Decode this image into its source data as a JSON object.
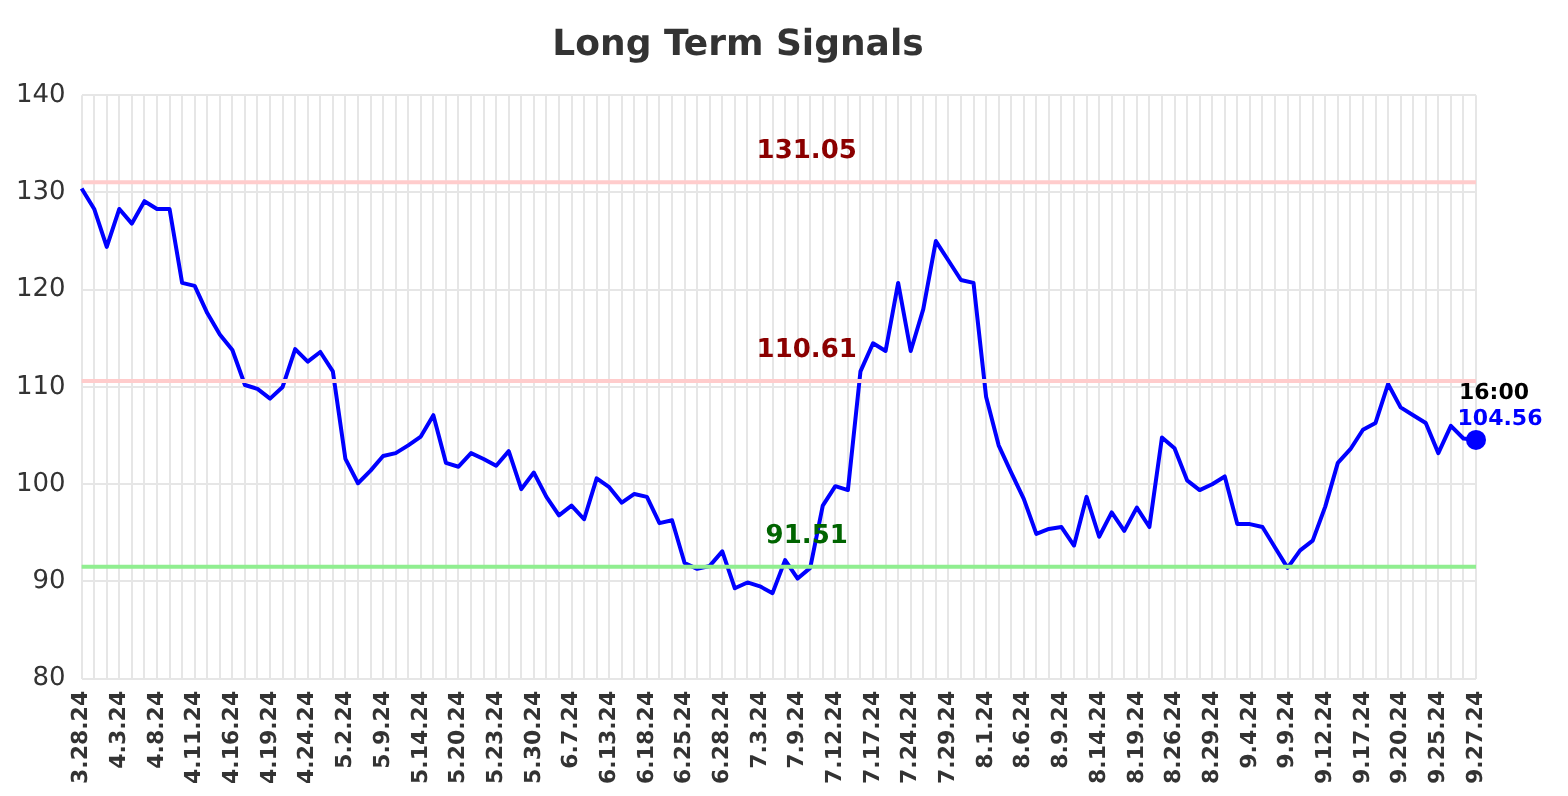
{
  "chart_data": {
    "type": "line",
    "title": "Long Term Signals",
    "categories": [
      "3.28.24",
      null,
      null,
      "4.3.24",
      null,
      null,
      "4.8.24",
      null,
      null,
      "4.11.24",
      null,
      null,
      "4.16.24",
      null,
      null,
      "4.19.24",
      null,
      null,
      "4.24.24",
      null,
      null,
      "5.2.24",
      null,
      null,
      "5.9.24",
      null,
      null,
      "5.14.24",
      null,
      null,
      "5.20.24",
      null,
      null,
      "5.23.24",
      null,
      null,
      "5.30.24",
      null,
      null,
      "6.7.24",
      null,
      null,
      "6.13.24",
      null,
      null,
      "6.18.24",
      null,
      null,
      "6.25.24",
      null,
      null,
      "6.28.24",
      null,
      null,
      "7.3.24",
      null,
      null,
      "7.9.24",
      null,
      null,
      "7.12.24",
      null,
      null,
      "7.17.24",
      null,
      null,
      "7.24.24",
      null,
      null,
      "7.29.24",
      null,
      null,
      "8.1.24",
      null,
      null,
      "8.6.24",
      null,
      null,
      "8.9.24",
      null,
      null,
      "8.14.24",
      null,
      null,
      "8.19.24",
      null,
      null,
      "8.26.24",
      null,
      null,
      "8.29.24",
      null,
      null,
      "9.4.24",
      null,
      null,
      "9.9.24",
      null,
      null,
      "9.12.24",
      null,
      null,
      "9.17.24",
      null,
      null,
      "9.20.24",
      null,
      null,
      "9.25.24",
      null,
      null,
      "9.27.24"
    ],
    "series": [
      {
        "color": "#0000ff",
        "values": [
          130.4,
          128.3,
          124.4,
          128.3,
          126.8,
          129.1,
          128.3,
          128.3,
          120.7,
          120.4,
          117.6,
          115.4,
          113.8,
          110.2,
          109.8,
          108.8,
          110.0,
          113.9,
          112.6,
          113.6,
          111.6,
          102.6,
          100.1,
          101.4,
          102.9,
          103.2,
          104.0,
          104.9,
          107.1,
          102.2,
          101.8,
          103.2,
          102.6,
          101.9,
          103.4,
          99.5,
          101.2,
          98.7,
          96.8,
          97.8,
          96.4,
          100.6,
          99.7,
          98.1,
          99.0,
          98.7,
          96.0,
          96.3,
          91.9,
          91.3,
          91.6,
          93.1,
          89.3,
          89.9,
          89.5,
          88.8,
          92.2,
          90.3,
          91.4,
          97.8,
          99.8,
          99.4,
          111.6,
          114.5,
          113.7,
          120.7,
          113.7,
          118.0,
          125.0,
          123.0,
          121.0,
          120.7,
          109.0,
          104.0,
          101.2,
          98.5,
          94.9,
          95.4,
          95.6,
          93.7,
          98.7,
          94.6,
          97.1,
          95.2,
          97.6,
          95.6,
          104.8,
          103.7,
          100.4,
          99.4,
          100.0,
          100.8,
          95.9,
          95.9,
          95.6,
          93.5,
          91.4,
          93.2,
          94.2,
          97.7,
          102.2,
          103.6,
          105.6,
          106.3,
          110.3,
          107.9,
          107.1,
          106.3,
          103.2,
          106.0,
          104.7,
          104.56
        ],
        "value_labels": [
          null,
          null,
          null,
          null,
          null,
          null,
          null,
          null,
          null,
          null,
          null,
          null,
          null,
          null,
          null,
          null,
          null,
          null,
          null,
          null,
          null,
          null,
          null,
          null,
          null,
          null,
          null,
          null,
          null,
          null,
          null,
          null,
          null,
          null,
          null,
          null,
          null,
          null,
          null,
          null,
          null,
          null,
          null,
          null,
          null,
          null,
          null,
          null,
          null,
          null,
          null,
          null,
          null,
          null,
          null,
          null,
          null,
          null,
          null,
          null,
          null,
          null,
          null,
          null,
          null,
          null,
          null,
          null,
          null,
          null,
          null,
          null,
          null,
          null,
          null,
          null,
          null,
          null,
          null,
          null,
          null,
          null,
          null,
          null,
          null,
          null,
          null,
          null,
          null,
          null,
          null,
          null,
          null,
          null,
          null,
          null,
          null,
          null,
          null,
          null,
          null,
          null,
          null,
          null,
          null,
          null,
          null,
          null,
          null,
          null,
          null,
          "104.56"
        ]
      }
    ],
    "ylim": [
      80,
      140
    ],
    "yticks": [
      80,
      90,
      100,
      110,
      120,
      130,
      140
    ],
    "grid": true,
    "ref_lines": [
      {
        "axis": "y",
        "value": 131.05,
        "label": "131.05",
        "color": "#ffcccc"
      },
      {
        "axis": "y",
        "value": 110.61,
        "label": "110.61",
        "color": "#ffcccc"
      },
      {
        "axis": "y",
        "value": 91.51,
        "label": "91.51",
        "color": "#90ee90"
      }
    ],
    "annotations": [
      {
        "text": "16:00",
        "x": "9.27.24",
        "y": 104.56
      }
    ]
  }
}
